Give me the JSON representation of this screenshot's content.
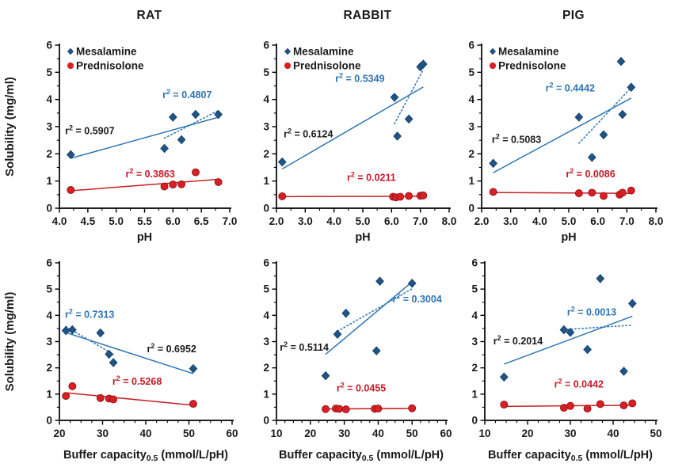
{
  "figure": {
    "ylabel": "Solubility (mg/ml)",
    "legend": [
      {
        "label": "Mesalamine",
        "marker": "diamond-icon",
        "color": "#1e5486"
      },
      {
        "label": "Prednisolone",
        "marker": "circle-icon",
        "color": "#d81f24"
      }
    ]
  },
  "colors": {
    "mesalamine_marker": "#1e5486",
    "mesalamine_marker_edge": "#143e66",
    "mesalamine_line": "#2d74b2",
    "mesalamine_annotation": "#2e74b5",
    "prednisolone_marker": "#d81f24",
    "prednisolone_marker_edge": "#921318",
    "prednisolone_line": "#c62026",
    "prednisolone_annotation": "#c41a28",
    "solid_fit_annotation": "#1b1b1b",
    "axis": "#000000",
    "text": "#1a1a1a"
  },
  "chart_data": [
    {
      "id": "rat-ph",
      "type": "scatter",
      "title": "RAT",
      "xlabel": {
        "pre": "pH",
        "sub": "",
        "post": ""
      },
      "ylabel": "Solubility (mg/ml)",
      "xlim": [
        4.0,
        7.0
      ],
      "xticks": [
        4.0,
        4.5,
        5.0,
        5.5,
        6.0,
        6.5,
        7.0
      ],
      "xtick_labels": [
        "4.0",
        "4.5",
        "5.0",
        "5.5",
        "6.0",
        "6.5",
        "7.0"
      ],
      "x_minor_step": 0.25,
      "ylim": [
        0,
        6
      ],
      "yticks": [
        0,
        1,
        2,
        3,
        4,
        5,
        6
      ],
      "ytick_labels": [
        "0",
        "1",
        "2",
        "3",
        "4",
        "5",
        "6"
      ],
      "y_minor_step": 0.5,
      "show_legend": true,
      "show_ylabel": true,
      "series": [
        {
          "name": "Mesalamine",
          "marker": "diamond",
          "points": [
            [
              4.2,
              1.97
            ],
            [
              5.85,
              2.2
            ],
            [
              6.0,
              3.35
            ],
            [
              6.15,
              2.52
            ],
            [
              6.4,
              3.45
            ],
            [
              6.8,
              3.45
            ]
          ]
        },
        {
          "name": "Prednisolone",
          "marker": "circle",
          "points": [
            [
              4.2,
              0.67
            ],
            [
              5.85,
              0.8
            ],
            [
              6.0,
              0.87
            ],
            [
              6.15,
              0.88
            ],
            [
              6.4,
              1.32
            ],
            [
              6.8,
              0.96
            ]
          ]
        }
      ],
      "trendlines": [
        {
          "series": "Mesalamine",
          "style": "solid",
          "subset": "all"
        },
        {
          "series": "Mesalamine",
          "style": "dotted",
          "subset": "exclude-stomach"
        },
        {
          "series": "Prednisolone",
          "style": "solid",
          "subset": "all"
        }
      ],
      "annotations": [
        {
          "text": "r² = 0.5907",
          "x": 4.1,
          "y": 2.72,
          "anchor": "start",
          "color_key": "solid_fit_annotation"
        },
        {
          "text": "r² = 0.4807",
          "x": 6.25,
          "y": 4.05,
          "anchor": "middle",
          "color_key": "mesalamine_annotation"
        },
        {
          "text": "r² = 0.3863",
          "x": 5.6,
          "y": 1.13,
          "anchor": "middle",
          "color_key": "prednisolone_annotation"
        }
      ]
    },
    {
      "id": "rabbit-ph",
      "type": "scatter",
      "title": "RABBIT",
      "xlabel": {
        "pre": "pH",
        "sub": "",
        "post": ""
      },
      "ylabel": "",
      "xlim": [
        2.0,
        8.0
      ],
      "xticks": [
        2.0,
        3.0,
        4.0,
        5.0,
        6.0,
        7.0,
        8.0
      ],
      "xtick_labels": [
        "2.0",
        "3.0",
        "4.0",
        "5.0",
        "6.0",
        "7.0",
        "8.0"
      ],
      "x_minor_step": 0.5,
      "ylim": [
        0,
        6
      ],
      "yticks": [
        0,
        1,
        2,
        3,
        4,
        5,
        6
      ],
      "ytick_labels": [
        "0",
        "1",
        "2",
        "3",
        "4",
        "5",
        "6"
      ],
      "y_minor_step": 0.5,
      "show_legend": true,
      "show_ylabel": false,
      "series": [
        {
          "name": "Mesalamine",
          "marker": "diamond",
          "points": [
            [
              2.2,
              1.7
            ],
            [
              6.1,
              4.08
            ],
            [
              6.2,
              2.65
            ],
            [
              6.6,
              3.28
            ],
            [
              7.0,
              5.2
            ],
            [
              7.1,
              5.3
            ]
          ]
        },
        {
          "name": "Prednisolone",
          "marker": "circle",
          "points": [
            [
              2.2,
              0.44
            ],
            [
              6.05,
              0.42
            ],
            [
              6.15,
              0.4
            ],
            [
              6.3,
              0.42
            ],
            [
              6.6,
              0.45
            ],
            [
              7.0,
              0.46
            ],
            [
              7.1,
              0.47
            ]
          ]
        }
      ],
      "trendlines": [
        {
          "series": "Mesalamine",
          "style": "solid",
          "subset": "all"
        },
        {
          "series": "Mesalamine",
          "style": "dotted",
          "subset": "exclude-stomach"
        },
        {
          "series": "Prednisolone",
          "style": "solid",
          "subset": "all"
        }
      ],
      "annotations": [
        {
          "text": "r² = 0.6124",
          "x": 2.25,
          "y": 2.6,
          "anchor": "start",
          "color_key": "solid_fit_annotation"
        },
        {
          "text": "r² = 0.5349",
          "x": 4.9,
          "y": 4.65,
          "anchor": "middle",
          "color_key": "mesalamine_annotation"
        },
        {
          "text": "r² = 0.0211",
          "x": 5.3,
          "y": 1.0,
          "anchor": "middle",
          "color_key": "prednisolone_annotation"
        }
      ]
    },
    {
      "id": "pig-ph",
      "type": "scatter",
      "title": "PIG",
      "xlabel": {
        "pre": "pH",
        "sub": "",
        "post": ""
      },
      "ylabel": "",
      "xlim": [
        2.0,
        8.0
      ],
      "xticks": [
        2.0,
        3.0,
        4.0,
        5.0,
        6.0,
        7.0,
        8.0
      ],
      "xtick_labels": [
        "2.0",
        "3.0",
        "4.0",
        "5.0",
        "6.0",
        "7.0",
        "8.0"
      ],
      "x_minor_step": 0.5,
      "ylim": [
        0,
        6
      ],
      "yticks": [
        0,
        1,
        2,
        3,
        4,
        5,
        6
      ],
      "ytick_labels": [
        "0",
        "1",
        "2",
        "3",
        "4",
        "5",
        "6"
      ],
      "y_minor_step": 0.5,
      "show_legend": true,
      "show_ylabel": false,
      "series": [
        {
          "name": "Mesalamine",
          "marker": "diamond",
          "points": [
            [
              2.4,
              1.65
            ],
            [
              5.35,
              3.35
            ],
            [
              5.8,
              1.87
            ],
            [
              6.2,
              2.7
            ],
            [
              6.8,
              5.4
            ],
            [
              6.85,
              3.45
            ],
            [
              7.15,
              4.45
            ]
          ]
        },
        {
          "name": "Prednisolone",
          "marker": "circle",
          "points": [
            [
              2.4,
              0.6
            ],
            [
              5.35,
              0.55
            ],
            [
              5.8,
              0.57
            ],
            [
              6.2,
              0.45
            ],
            [
              6.75,
              0.5
            ],
            [
              6.85,
              0.57
            ],
            [
              7.15,
              0.65
            ]
          ]
        }
      ],
      "trendlines": [
        {
          "series": "Mesalamine",
          "style": "solid",
          "subset": "all"
        },
        {
          "series": "Mesalamine",
          "style": "dotted",
          "subset": "exclude-stomach"
        },
        {
          "series": "Prednisolone",
          "style": "solid",
          "subset": "all"
        }
      ],
      "annotations": [
        {
          "text": "r² = 0.5083",
          "x": 2.35,
          "y": 2.4,
          "anchor": "start",
          "color_key": "solid_fit_annotation"
        },
        {
          "text": "r² = 0.4442",
          "x": 5.05,
          "y": 4.3,
          "anchor": "middle",
          "color_key": "mesalamine_annotation"
        },
        {
          "text": "r² = 0.0086",
          "x": 5.75,
          "y": 1.13,
          "anchor": "middle",
          "color_key": "prednisolone_annotation"
        }
      ]
    },
    {
      "id": "rat-buffer",
      "type": "scatter",
      "title": "",
      "xlabel": {
        "pre": "Buffer capacity",
        "sub": "0.5",
        "post": " (mmol/L/pH)"
      },
      "ylabel": "Solubility (mg/ml)",
      "xlim": [
        20,
        60
      ],
      "xticks": [
        20,
        30,
        40,
        50,
        60
      ],
      "xtick_labels": [
        "20",
        "30",
        "40",
        "50",
        "60"
      ],
      "x_minor_step": 2.5,
      "ylim": [
        0,
        6
      ],
      "yticks": [
        0,
        1,
        2,
        3,
        4,
        5,
        6
      ],
      "ytick_labels": [
        "0",
        "1",
        "2",
        "3",
        "4",
        "5",
        "6"
      ],
      "y_minor_step": 0.5,
      "show_legend": false,
      "show_ylabel": true,
      "series": [
        {
          "name": "Mesalamine",
          "marker": "diamond",
          "points": [
            [
              51,
              1.97
            ],
            [
              21.5,
              3.42
            ],
            [
              23,
              3.45
            ],
            [
              29.5,
              3.33
            ],
            [
              31.5,
              2.52
            ],
            [
              32.5,
              2.2
            ]
          ]
        },
        {
          "name": "Prednisolone",
          "marker": "circle",
          "points": [
            [
              51,
              0.63
            ],
            [
              21.5,
              0.93
            ],
            [
              23,
              1.3
            ],
            [
              29.5,
              0.85
            ],
            [
              31.5,
              0.83
            ],
            [
              32.5,
              0.8
            ]
          ]
        }
      ],
      "trendlines": [
        {
          "series": "Mesalamine",
          "style": "solid",
          "subset": "all"
        },
        {
          "series": "Mesalamine",
          "style": "dotted",
          "subset": "exclude-stomach"
        },
        {
          "series": "Prednisolone",
          "style": "solid",
          "subset": "all"
        }
      ],
      "annotations": [
        {
          "text": "r² = 0.6952",
          "x": 46,
          "y": 2.6,
          "anchor": "middle",
          "color_key": "solid_fit_annotation"
        },
        {
          "text": "r² = 0.7313",
          "x": 27,
          "y": 3.9,
          "anchor": "middle",
          "color_key": "mesalamine_annotation"
        },
        {
          "text": "r² = 0.5268",
          "x": 38,
          "y": 1.35,
          "anchor": "middle",
          "color_key": "prednisolone_annotation"
        }
      ]
    },
    {
      "id": "rabbit-buffer",
      "type": "scatter",
      "title": "",
      "xlabel": {
        "pre": "Buffer capacity",
        "sub": "0.5",
        "post": " (mmol/L/pH)"
      },
      "ylabel": "",
      "xlim": [
        10,
        60
      ],
      "xticks": [
        10,
        20,
        30,
        40,
        50,
        60
      ],
      "xtick_labels": [
        "10",
        "20",
        "30",
        "40",
        "50",
        "60"
      ],
      "x_minor_step": 2.5,
      "ylim": [
        0,
        6
      ],
      "yticks": [
        0,
        1,
        2,
        3,
        4,
        5,
        6
      ],
      "ytick_labels": [
        "0",
        "1",
        "2",
        "3",
        "4",
        "5",
        "6"
      ],
      "y_minor_step": 0.5,
      "show_legend": false,
      "show_ylabel": false,
      "series": [
        {
          "name": "Mesalamine",
          "marker": "diamond",
          "points": [
            [
              24.5,
              1.7
            ],
            [
              28,
              3.28
            ],
            [
              30.5,
              4.08
            ],
            [
              39.5,
              2.65
            ],
            [
              40.5,
              5.3
            ],
            [
              50,
              5.22
            ]
          ]
        },
        {
          "name": "Prednisolone",
          "marker": "circle",
          "points": [
            [
              24.5,
              0.43
            ],
            [
              27.5,
              0.45
            ],
            [
              28.5,
              0.44
            ],
            [
              30.5,
              0.42
            ],
            [
              39,
              0.44
            ],
            [
              40,
              0.45
            ],
            [
              50,
              0.46
            ]
          ]
        }
      ],
      "trendlines": [
        {
          "series": "Mesalamine",
          "style": "solid",
          "subset": "all"
        },
        {
          "series": "Mesalamine",
          "style": "dotted",
          "subset": "exclude-stomach"
        },
        {
          "series": "Prednisolone",
          "style": "solid",
          "subset": "all"
        }
      ],
      "annotations": [
        {
          "text": "r² = 0.5114",
          "x": 11,
          "y": 2.65,
          "anchor": "start",
          "color_key": "solid_fit_annotation"
        },
        {
          "text": "r² = 0.3004",
          "x": 51.5,
          "y": 4.5,
          "anchor": "middle",
          "color_key": "mesalamine_annotation"
        },
        {
          "text": "r² = 0.0455",
          "x": 35,
          "y": 1.1,
          "anchor": "middle",
          "color_key": "prednisolone_annotation"
        }
      ]
    },
    {
      "id": "pig-buffer",
      "type": "scatter",
      "title": "",
      "xlabel": {
        "pre": "Buffer capacity",
        "sub": "0.5",
        "post": " (mmol/L/pH)"
      },
      "ylabel": "",
      "xlim": [
        10,
        50
      ],
      "xticks": [
        10,
        20,
        30,
        40,
        50
      ],
      "xtick_labels": [
        "10",
        "20",
        "30",
        "40",
        "50"
      ],
      "x_minor_step": 2.5,
      "ylim": [
        0,
        6
      ],
      "yticks": [
        0,
        1,
        2,
        3,
        4,
        5,
        6
      ],
      "ytick_labels": [
        "0",
        "1",
        "2",
        "3",
        "4",
        "5",
        "6"
      ],
      "y_minor_step": 0.5,
      "show_legend": false,
      "show_ylabel": false,
      "series": [
        {
          "name": "Mesalamine",
          "marker": "diamond",
          "points": [
            [
              14.5,
              1.65
            ],
            [
              28.5,
              3.45
            ],
            [
              30,
              3.35
            ],
            [
              34,
              2.7
            ],
            [
              37,
              5.4
            ],
            [
              42.5,
              1.87
            ],
            [
              44.5,
              4.45
            ]
          ]
        },
        {
          "name": "Prednisolone",
          "marker": "circle",
          "points": [
            [
              14.5,
              0.6
            ],
            [
              28.5,
              0.48
            ],
            [
              30,
              0.55
            ],
            [
              34,
              0.45
            ],
            [
              37,
              0.62
            ],
            [
              42.5,
              0.57
            ],
            [
              44.5,
              0.65
            ]
          ]
        }
      ],
      "trendlines": [
        {
          "series": "Mesalamine",
          "style": "solid",
          "subset": "all"
        },
        {
          "series": "Mesalamine",
          "style": "dotted",
          "subset": "exclude-stomach"
        },
        {
          "series": "Prednisolone",
          "style": "solid",
          "subset": "all"
        }
      ],
      "annotations": [
        {
          "text": "r² = 0.2014",
          "x": 12,
          "y": 2.9,
          "anchor": "start",
          "color_key": "solid_fit_annotation"
        },
        {
          "text": "r² = 0.0013",
          "x": 35,
          "y": 4.0,
          "anchor": "middle",
          "color_key": "mesalamine_annotation"
        },
        {
          "text": "r² = 0.0442",
          "x": 32,
          "y": 1.25,
          "anchor": "middle",
          "color_key": "prednisolone_annotation"
        }
      ]
    }
  ]
}
